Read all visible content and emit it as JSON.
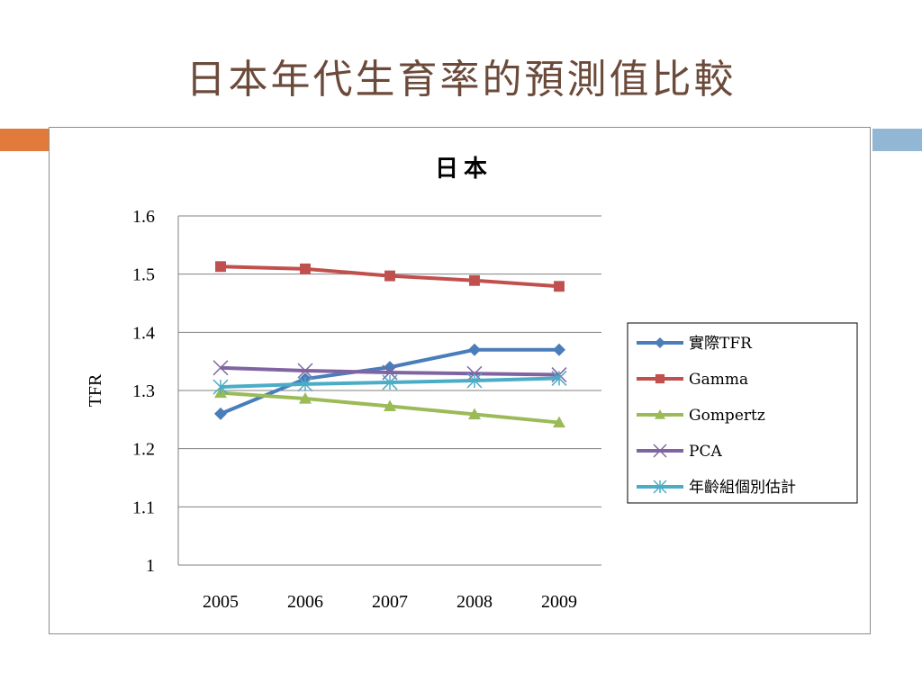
{
  "slide": {
    "title": "日本年代生育率的預測值比較"
  },
  "colors": {
    "title_text": "#6b4a3a",
    "accent_left": "#e07b3c",
    "accent_right": "#92b7d5",
    "gridline": "#808080"
  },
  "chart_data": {
    "type": "line",
    "title": "日本",
    "xlabel": "",
    "ylabel": "TFR",
    "categories": [
      "2005",
      "2006",
      "2007",
      "2008",
      "2009"
    ],
    "ylim": [
      1,
      1.6
    ],
    "yticks": [
      "1",
      "1.1",
      "1.2",
      "1.3",
      "1.4",
      "1.5",
      "1.6"
    ],
    "grid": true,
    "legend_position": "right",
    "series": [
      {
        "name": "實際TFR",
        "values": [
          1.26,
          1.32,
          1.34,
          1.37,
          1.37
        ],
        "color": "#4a7ebb",
        "marker": "diamond"
      },
      {
        "name": "Gamma",
        "values": [
          1.513,
          1.509,
          1.497,
          1.489,
          1.479
        ],
        "color": "#c0504d",
        "marker": "square"
      },
      {
        "name": "Gompertz",
        "values": [
          1.296,
          1.286,
          1.273,
          1.259,
          1.245
        ],
        "color": "#9bbb59",
        "marker": "triangle"
      },
      {
        "name": "PCA",
        "values": [
          1.339,
          1.334,
          1.331,
          1.329,
          1.327
        ],
        "color": "#8064a2",
        "marker": "x"
      },
      {
        "name": "年齡組個別估計",
        "values": [
          1.306,
          1.311,
          1.314,
          1.317,
          1.321
        ],
        "color": "#4bacc6",
        "marker": "star"
      }
    ]
  }
}
